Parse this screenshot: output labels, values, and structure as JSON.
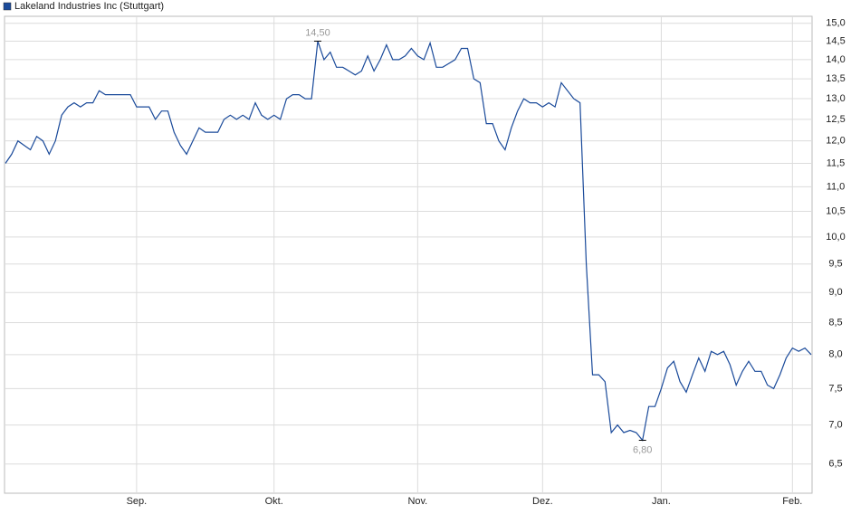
{
  "chart_data": {
    "type": "line",
    "scale": "log",
    "grid": true,
    "legend": "top-left",
    "series": [
      {
        "name": "Lakeland Industries Inc (Stuttgart)",
        "color": "#1a4a9a",
        "values": [
          11.5,
          11.7,
          12.0,
          11.9,
          11.8,
          12.1,
          12.0,
          11.7,
          12.0,
          12.6,
          12.8,
          12.9,
          12.8,
          12.9,
          12.9,
          13.2,
          13.1,
          13.1,
          13.1,
          13.1,
          13.1,
          12.8,
          12.8,
          12.8,
          12.5,
          12.7,
          12.7,
          12.2,
          11.9,
          11.7,
          12.0,
          12.3,
          12.2,
          12.2,
          12.2,
          12.5,
          12.6,
          12.5,
          12.6,
          12.5,
          12.9,
          12.6,
          12.5,
          12.6,
          12.5,
          13.0,
          13.1,
          13.1,
          13.0,
          13.0,
          14.5,
          14.0,
          14.2,
          13.8,
          13.8,
          13.7,
          13.6,
          13.7,
          14.1,
          13.7,
          14.0,
          14.4,
          14.0,
          14.0,
          14.1,
          14.3,
          14.1,
          14.0,
          14.45,
          13.8,
          13.8,
          13.9,
          14.0,
          14.3,
          14.3,
          13.5,
          13.4,
          12.4,
          12.4,
          12.0,
          11.8,
          12.3,
          12.7,
          13.0,
          12.9,
          12.9,
          12.8,
          12.9,
          12.8,
          13.4,
          13.2,
          13.0,
          12.9,
          9.5,
          7.7,
          7.7,
          7.6,
          6.9,
          7.0,
          6.9,
          6.93,
          6.9,
          6.8,
          7.25,
          7.25,
          7.5,
          7.8,
          7.9,
          7.6,
          7.45,
          7.7,
          7.95,
          7.75,
          8.05,
          8.0,
          8.05,
          7.85,
          7.55,
          7.75,
          7.9,
          7.75,
          7.75,
          7.55,
          7.5,
          7.7,
          7.95,
          8.1,
          8.05,
          8.1,
          8.0
        ]
      }
    ],
    "categories": [
      null,
      null,
      null,
      null,
      null,
      null,
      null,
      null,
      null,
      null,
      null,
      null,
      null,
      null,
      null,
      null,
      null,
      null,
      null,
      null,
      null,
      "Sep.",
      null,
      null,
      null,
      null,
      null,
      null,
      null,
      null,
      null,
      null,
      null,
      null,
      null,
      null,
      null,
      null,
      null,
      null,
      null,
      null,
      null,
      "Okt.",
      null,
      null,
      null,
      null,
      null,
      null,
      null,
      null,
      null,
      null,
      null,
      null,
      null,
      null,
      null,
      null,
      null,
      null,
      null,
      null,
      null,
      null,
      "Nov.",
      null,
      null,
      null,
      null,
      null,
      null,
      null,
      null,
      null,
      null,
      null,
      null,
      null,
      null,
      null,
      null,
      null,
      null,
      null,
      "Dez.",
      null,
      null,
      null,
      null,
      null,
      null,
      null,
      null,
      null,
      null,
      null,
      null,
      null,
      null,
      null,
      null,
      null,
      null,
      "Jan.",
      null,
      null,
      null,
      null,
      null,
      null,
      null,
      null,
      null,
      null,
      null,
      null,
      null,
      null,
      null,
      null,
      null,
      null,
      null,
      null,
      "Feb.",
      null,
      null,
      null
    ],
    "ylim": [
      6.15,
      15.2
    ],
    "yticks": [
      {
        "value": 6.5,
        "label": "6,5"
      },
      {
        "value": 7,
        "label": "7,0"
      },
      {
        "value": 7.5,
        "label": "7,5"
      },
      {
        "value": 8,
        "label": "8,0"
      },
      {
        "value": 8.5,
        "label": "8,5"
      },
      {
        "value": 9,
        "label": "9,0"
      },
      {
        "value": 9.5,
        "label": "9,5"
      },
      {
        "value": 10,
        "label": "10,0"
      },
      {
        "value": 10.5,
        "label": "10,5"
      },
      {
        "value": 11,
        "label": "11,0"
      },
      {
        "value": 11.5,
        "label": "11,5"
      },
      {
        "value": 12,
        "label": "12,0"
      },
      {
        "value": 12.5,
        "label": "12,5"
      },
      {
        "value": 13,
        "label": "13,0"
      },
      {
        "value": 13.5,
        "label": "13,5"
      },
      {
        "value": 14,
        "label": "14,0"
      },
      {
        "value": 14.5,
        "label": "14,5"
      },
      {
        "value": 15,
        "label": "15,0"
      }
    ],
    "annotations": [
      {
        "label": "14,50",
        "value": 14.5
      },
      {
        "label": "6,80",
        "value": 6.8
      }
    ]
  }
}
